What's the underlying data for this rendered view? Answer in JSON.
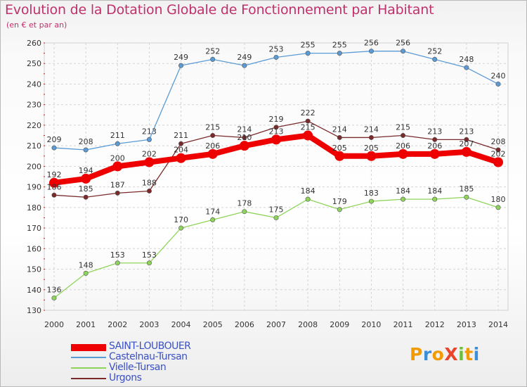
{
  "title": "Evolution de la Dotation Globale de Fonctionnement par Habitant",
  "subtitle": "(en € et par an)",
  "logo": "ProXiti",
  "chart_data": {
    "type": "line",
    "title": "Evolution de la Dotation Globale de Fonctionnement par Habitant",
    "subtitle": "(en € et par an)",
    "xlabel": "",
    "ylabel": "",
    "x": [
      "2000",
      "2001",
      "2002",
      "2003",
      "2004",
      "2005",
      "2006",
      "2007",
      "2008",
      "2009",
      "2010",
      "2011",
      "2012",
      "2013",
      "2014"
    ],
    "ylim": [
      130,
      260
    ],
    "yticks": [
      130,
      140,
      150,
      160,
      170,
      180,
      190,
      200,
      210,
      220,
      230,
      240,
      250,
      260
    ],
    "grid": true,
    "legend_position": "bottom-left",
    "series": [
      {
        "name": "SAINT-LOUBOUER",
        "color": "#ee0000",
        "values": [
          192,
          194,
          200,
          202,
          204,
          206,
          210,
          213,
          215,
          205,
          205,
          206,
          206,
          207,
          202
        ]
      },
      {
        "name": "Castelnau-Tursan",
        "color": "#5b9bd5",
        "values": [
          209,
          208,
          211,
          213,
          249,
          252,
          249,
          253,
          255,
          255,
          256,
          256,
          252,
          248,
          240
        ]
      },
      {
        "name": "Vielle-Tursan",
        "color": "#8fd45a",
        "values": [
          136,
          148,
          153,
          153,
          170,
          174,
          178,
          175,
          184,
          179,
          183,
          184,
          184,
          185,
          180
        ]
      },
      {
        "name": "Urgons",
        "color": "#7a2a2a",
        "values": [
          186,
          185,
          187,
          188,
          211,
          215,
          214,
          219,
          222,
          214,
          214,
          215,
          213,
          213,
          208
        ]
      }
    ]
  }
}
